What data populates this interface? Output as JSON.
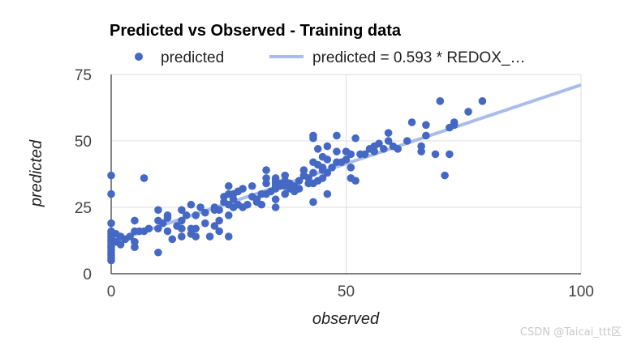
{
  "chart_data": {
    "type": "scatter",
    "title": "Predicted vs Observed - Training data",
    "xlabel": "observed",
    "ylabel": "predicted",
    "xlim": [
      0,
      100
    ],
    "ylim": [
      0,
      75
    ],
    "xticks": [
      "0",
      "50",
      "100"
    ],
    "yticks": [
      "0",
      "25",
      "50",
      "75"
    ],
    "grid": true,
    "legend_position": "top",
    "series": [
      {
        "name": "predicted",
        "kind": "points",
        "color": "#4468c4",
        "points": [
          [
            0,
            37
          ],
          [
            0,
            30
          ],
          [
            0,
            19
          ],
          [
            0,
            16
          ],
          [
            0,
            15
          ],
          [
            0,
            14
          ],
          [
            0,
            13
          ],
          [
            0,
            12
          ],
          [
            0,
            11
          ],
          [
            0,
            10
          ],
          [
            0,
            9
          ],
          [
            0,
            8
          ],
          [
            0,
            7
          ],
          [
            0,
            6
          ],
          [
            0,
            5
          ],
          [
            1,
            12
          ],
          [
            1,
            15
          ],
          [
            2,
            11
          ],
          [
            2,
            14
          ],
          [
            3,
            13
          ],
          [
            4,
            14
          ],
          [
            5,
            10
          ],
          [
            5,
            12
          ],
          [
            5,
            16
          ],
          [
            5,
            20
          ],
          [
            6,
            16
          ],
          [
            7,
            36
          ],
          [
            7,
            16
          ],
          [
            8,
            17
          ],
          [
            10,
            8
          ],
          [
            10,
            17
          ],
          [
            10,
            24
          ],
          [
            10,
            20
          ],
          [
            11,
            19
          ],
          [
            12,
            16
          ],
          [
            12,
            21
          ],
          [
            12,
            22
          ],
          [
            13,
            13
          ],
          [
            14,
            18
          ],
          [
            15,
            14
          ],
          [
            15,
            17
          ],
          [
            15,
            20
          ],
          [
            15,
            24
          ],
          [
            16,
            22
          ],
          [
            17,
            15
          ],
          [
            17,
            17
          ],
          [
            17,
            26
          ],
          [
            18,
            14
          ],
          [
            18,
            17
          ],
          [
            18,
            22
          ],
          [
            19,
            25
          ],
          [
            20,
            19
          ],
          [
            20,
            23
          ],
          [
            21,
            14
          ],
          [
            22,
            25
          ],
          [
            22,
            18
          ],
          [
            22,
            24
          ],
          [
            23,
            16
          ],
          [
            23,
            20
          ],
          [
            23,
            24
          ],
          [
            24,
            27
          ],
          [
            24,
            29
          ],
          [
            25,
            14
          ],
          [
            25,
            22
          ],
          [
            25,
            26
          ],
          [
            25,
            30
          ],
          [
            25,
            33
          ],
          [
            26,
            25
          ],
          [
            26,
            28
          ],
          [
            26,
            30
          ],
          [
            27,
            26
          ],
          [
            27,
            31
          ],
          [
            28,
            25
          ],
          [
            28,
            32
          ],
          [
            29,
            26
          ],
          [
            30,
            29
          ],
          [
            30,
            33
          ],
          [
            31,
            28
          ],
          [
            31,
            27
          ],
          [
            32,
            26
          ],
          [
            32,
            30
          ],
          [
            33,
            30
          ],
          [
            33,
            34
          ],
          [
            33,
            36
          ],
          [
            33,
            39
          ],
          [
            34,
            31
          ],
          [
            35,
            25
          ],
          [
            35,
            28
          ],
          [
            35,
            32
          ],
          [
            35,
            33
          ],
          [
            35,
            34
          ],
          [
            35,
            35
          ],
          [
            35,
            36
          ],
          [
            36,
            33
          ],
          [
            36,
            34
          ],
          [
            37,
            30
          ],
          [
            37,
            33
          ],
          [
            37,
            35
          ],
          [
            37,
            37
          ],
          [
            38,
            32
          ],
          [
            38,
            34
          ],
          [
            39,
            31
          ],
          [
            39,
            33
          ],
          [
            40,
            32
          ],
          [
            40,
            35
          ],
          [
            41,
            37
          ],
          [
            41,
            39
          ],
          [
            42,
            34
          ],
          [
            42,
            36
          ],
          [
            43,
            27
          ],
          [
            43,
            34
          ],
          [
            43,
            38
          ],
          [
            43,
            42
          ],
          [
            43,
            51
          ],
          [
            43,
            52
          ],
          [
            44,
            35
          ],
          [
            44,
            41
          ],
          [
            44,
            47
          ],
          [
            45,
            36
          ],
          [
            45,
            39
          ],
          [
            45,
            40
          ],
          [
            45,
            44
          ],
          [
            46,
            30
          ],
          [
            46,
            38
          ],
          [
            46,
            43
          ],
          [
            46,
            48
          ],
          [
            47,
            40
          ],
          [
            48,
            42
          ],
          [
            48,
            46
          ],
          [
            48,
            52
          ],
          [
            49,
            42
          ],
          [
            50,
            43
          ],
          [
            50,
            46
          ],
          [
            51,
            45
          ],
          [
            51,
            36
          ],
          [
            51,
            40
          ],
          [
            52,
            35
          ],
          [
            52,
            51
          ],
          [
            53,
            45
          ],
          [
            54,
            45
          ],
          [
            55,
            47
          ],
          [
            56,
            46
          ],
          [
            56,
            48
          ],
          [
            57,
            49
          ],
          [
            58,
            47
          ],
          [
            59,
            50
          ],
          [
            59,
            53
          ],
          [
            60,
            48
          ],
          [
            61,
            47
          ],
          [
            63,
            50
          ],
          [
            64,
            57
          ],
          [
            66,
            48
          ],
          [
            66,
            46
          ],
          [
            67,
            56
          ],
          [
            67,
            52
          ],
          [
            69,
            45
          ],
          [
            70,
            65
          ],
          [
            71,
            37
          ],
          [
            72,
            45
          ],
          [
            72,
            55
          ],
          [
            73,
            56
          ],
          [
            73,
            57
          ],
          [
            76,
            61
          ],
          [
            79,
            65
          ]
        ]
      },
      {
        "name": "predicted = 0.593 * REDOX_…",
        "kind": "trendline",
        "color": "#a9bde8",
        "slope": 0.593,
        "intercept": 11.8
      }
    ]
  },
  "watermark": "CSDN @Taicai_ttt区"
}
